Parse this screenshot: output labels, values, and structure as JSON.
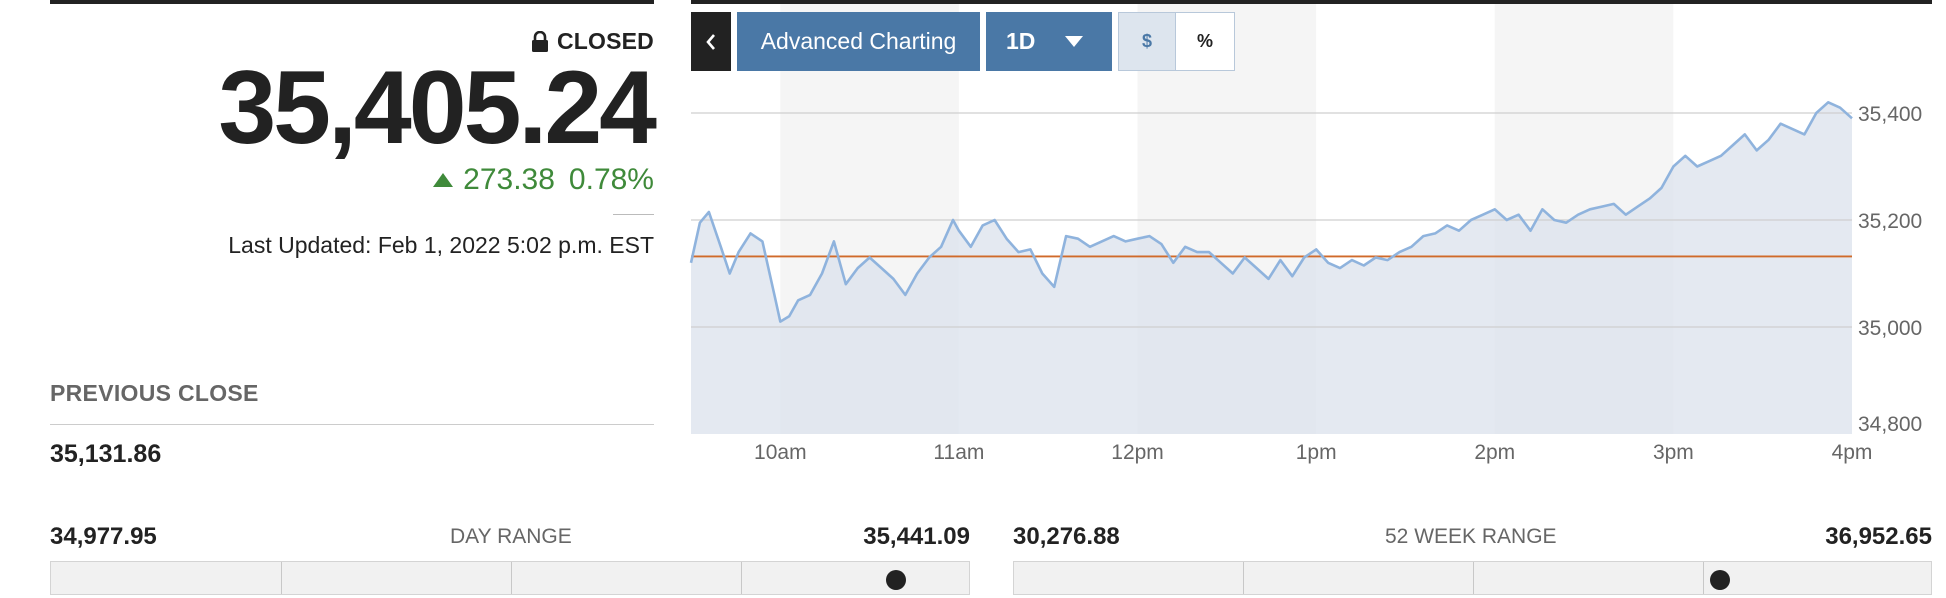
{
  "quote": {
    "status": "CLOSED",
    "price": "35,405.24",
    "change": "273.38",
    "change_percent": "0.78%",
    "last_updated": "Last Updated: Feb 1, 2022 5:02 p.m. EST",
    "up_color": "#3f8a3a"
  },
  "previous_close": {
    "label": "PREVIOUS CLOSE",
    "value": "35,131.86"
  },
  "day_range": {
    "label": "DAY RANGE",
    "low": "34,977.95",
    "high": "35,441.09",
    "position": 0.92
  },
  "week52_range": {
    "label": "52 WEEK RANGE",
    "low": "30,276.88",
    "high": "36,952.65",
    "position": 0.77
  },
  "toolbar": {
    "back_icon": "chevron-left-icon",
    "advanced_label": "Advanced Charting",
    "period_label": "1D",
    "dollar_label": "$",
    "percent_label": "%"
  },
  "colors": {
    "line": "#8fb3dd",
    "area": "#dde4ee",
    "prev_close_line": "#d06a2a",
    "button_blue": "#4a78a6"
  },
  "chart_data": {
    "type": "line",
    "title": "",
    "xlabel": "",
    "ylabel": "",
    "x_ticks": [
      "10am",
      "11am",
      "12pm",
      "1pm",
      "2pm",
      "3pm",
      "4pm"
    ],
    "y_ticks": [
      "35,400",
      "35,200",
      "35,000",
      "34,800"
    ],
    "y_tick_values": [
      35400,
      35200,
      35000,
      34800
    ],
    "xlim": [
      "9:30",
      "16:00"
    ],
    "ylim": [
      34800,
      35420
    ],
    "previous_close": 35131.86,
    "grid": true,
    "series": [
      {
        "x": [
          "9:30",
          "9:33",
          "9:36",
          "9:40",
          "9:43",
          "9:46",
          "9:50",
          "9:54",
          "9:58",
          "10:00",
          "10:03",
          "10:06",
          "10:10",
          "10:14",
          "10:18",
          "10:22",
          "10:26",
          "10:30",
          "10:34",
          "10:38",
          "10:42",
          "10:46",
          "10:50",
          "10:54",
          "10:58",
          "11:00",
          "11:04",
          "11:08",
          "11:12",
          "11:16",
          "11:20",
          "11:24",
          "11:28",
          "11:32",
          "11:36",
          "11:40",
          "11:44",
          "11:48",
          "11:52",
          "11:56",
          "12:00",
          "12:04",
          "12:08",
          "12:12",
          "12:16",
          "12:20",
          "12:24",
          "12:28",
          "12:32",
          "12:36",
          "12:40",
          "12:44",
          "12:48",
          "12:52",
          "12:56",
          "13:00",
          "13:04",
          "13:08",
          "13:12",
          "13:16",
          "13:20",
          "13:24",
          "13:28",
          "13:32",
          "13:36",
          "13:40",
          "13:44",
          "13:48",
          "13:52",
          "13:56",
          "14:00",
          "14:04",
          "14:08",
          "14:12",
          "14:16",
          "14:20",
          "14:24",
          "14:28",
          "14:32",
          "14:36",
          "14:40",
          "14:44",
          "14:48",
          "14:52",
          "14:56",
          "15:00",
          "15:04",
          "15:08",
          "15:12",
          "15:16",
          "15:20",
          "15:24",
          "15:28",
          "15:32",
          "15:36",
          "15:40",
          "15:44",
          "15:48",
          "15:52",
          "15:56",
          "16:00"
        ],
        "values": [
          35120,
          35195,
          35215,
          35150,
          35100,
          35140,
          35175,
          35160,
          35060,
          35010,
          35020,
          35050,
          35060,
          35100,
          35160,
          35080,
          35110,
          35130,
          35110,
          35090,
          35060,
          35100,
          35130,
          35150,
          35200,
          35180,
          35150,
          35190,
          35200,
          35165,
          35140,
          35145,
          35100,
          35075,
          35170,
          35165,
          35150,
          35160,
          35170,
          35160,
          35165,
          35170,
          35155,
          35120,
          35150,
          35140,
          35140,
          35120,
          35100,
          35130,
          35110,
          35090,
          35125,
          35095,
          35130,
          35145,
          35120,
          35110,
          35125,
          35115,
          35130,
          35125,
          35140,
          35150,
          35170,
          35175,
          35190,
          35180,
          35200,
          35210,
          35220,
          35200,
          35210,
          35180,
          35220,
          35200,
          35195,
          35210,
          35220,
          35225,
          35230,
          35210,
          35225,
          35240,
          35260,
          35300,
          35320,
          35300,
          35310,
          35320,
          35340,
          35360,
          35330,
          35350,
          35380,
          35370,
          35360,
          35400,
          35420,
          35410,
          35390
        ]
      }
    ]
  }
}
